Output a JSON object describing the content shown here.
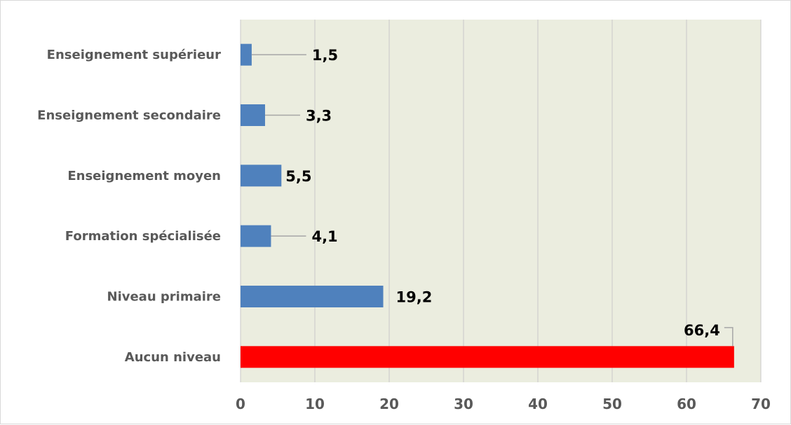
{
  "chart_data": {
    "type": "bar",
    "orientation": "horizontal",
    "categories": [
      "Enseignement supérieur",
      "Enseignement secondaire",
      "Enseignement moyen",
      "Formation spécialisée",
      "Niveau primaire",
      "Aucun niveau"
    ],
    "values": [
      1.5,
      3.3,
      5.5,
      4.1,
      19.2,
      66.4
    ],
    "data_labels": [
      "1,5",
      "3,3",
      "5,5",
      "4,1",
      "19,2",
      "66,4"
    ],
    "bar_colors": [
      "#4f81bd",
      "#4f81bd",
      "#4f81bd",
      "#4f81bd",
      "#4f81bd",
      "#ff0000"
    ],
    "xlim": [
      0,
      70
    ],
    "x_ticks": [
      0,
      10,
      20,
      30,
      40,
      50,
      60,
      70
    ],
    "x_tick_labels": [
      "0",
      "10",
      "20",
      "30",
      "40",
      "50",
      "60",
      "70"
    ],
    "title": "",
    "xlabel": "",
    "ylabel": "",
    "grid": true,
    "legend": "none",
    "plot_background": "#ebeddf",
    "grid_color": "#c8c8c8"
  }
}
